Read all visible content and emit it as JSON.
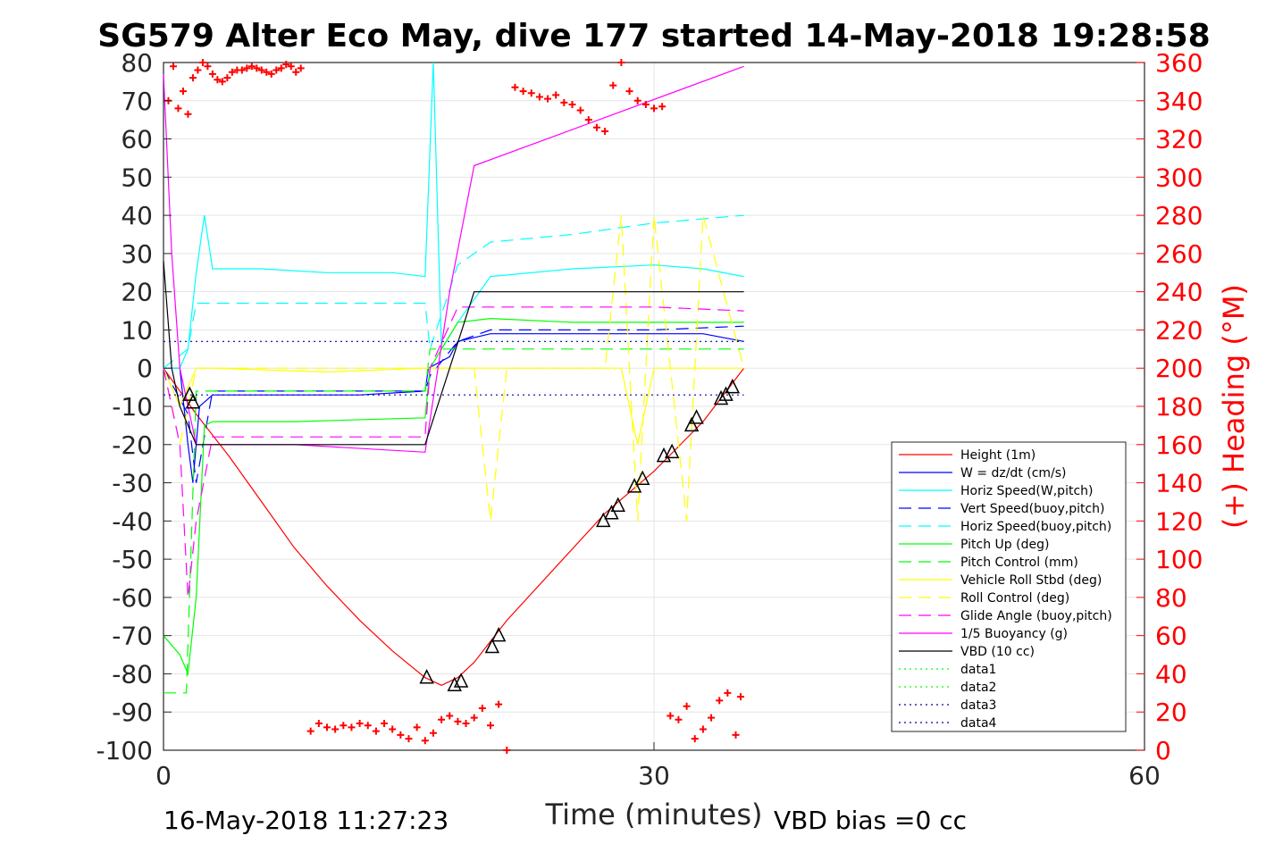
{
  "chart_data": {
    "type": "line",
    "title": "SG579 Alter Eco May, dive 177 started 14-May-2018 19:28:58",
    "xlabel": "Time (minutes)",
    "ylabel": "",
    "ylabel_right": "(+) Heading (°M)",
    "xlim": [
      0,
      60
    ],
    "ylim": [
      -100,
      80
    ],
    "ylim_right": [
      0,
      360
    ],
    "xticks": [
      "0",
      "30",
      "60"
    ],
    "yticks": [
      "80",
      "70",
      "60",
      "50",
      "40",
      "30",
      "20",
      "10",
      "0",
      "-10",
      "-20",
      "-30",
      "-40",
      "-50",
      "-60",
      "-70",
      "-80",
      "-90",
      "-100"
    ],
    "yticks_right": [
      "360",
      "340",
      "320",
      "300",
      "280",
      "260",
      "240",
      "220",
      "200",
      "180",
      "160",
      "140",
      "120",
      "100",
      "80",
      "60",
      "40",
      "20",
      "0"
    ],
    "grid": true,
    "legend_position": "bottom-right",
    "footer_left": "16-May-2018 11:27:23",
    "footer_right": "VBD bias =0 cc",
    "series": [
      {
        "name": "Height (1m)",
        "color": "#ff0000",
        "style": "solid",
        "x": [
          0,
          2,
          4,
          6,
          8,
          10,
          12,
          14,
          16,
          17,
          18,
          19,
          21,
          24,
          27,
          30,
          33,
          35.5
        ],
        "y": [
          0,
          -12,
          -23,
          -35,
          -47,
          -57,
          -66,
          -74,
          -81,
          -83,
          -81,
          -77,
          -66,
          -52,
          -38,
          -27,
          -14,
          0
        ]
      },
      {
        "name": "W = dz/dt (cm/s)",
        "color": "#0000ff",
        "style": "solid",
        "x": [
          0,
          1,
          1.5,
          1.8,
          2.2,
          3,
          8,
          12,
          16,
          16.2,
          17.5,
          18,
          20,
          25,
          30,
          33,
          35.5
        ],
        "y": [
          0,
          0,
          -20,
          -30,
          -10,
          -7,
          -7,
          -7,
          -6,
          0,
          3,
          7,
          9,
          9,
          9,
          9,
          7
        ]
      },
      {
        "name": "Horiz Speed(W,pitch)",
        "color": "#00ffff",
        "style": "solid",
        "x": [
          0,
          1,
          1.5,
          2,
          2.5,
          3,
          6,
          10,
          14,
          16,
          16.5,
          17,
          18,
          20,
          25,
          30,
          33,
          35.5
        ],
        "y": [
          0,
          0,
          5,
          25,
          40,
          26,
          26,
          25,
          25,
          24,
          80,
          5,
          12,
          24,
          26,
          27,
          26,
          24
        ]
      },
      {
        "name": "Vert Speed(buoy,pitch)",
        "color": "#0000ff",
        "style": "dashed",
        "x": [
          0,
          1.5,
          2,
          3,
          8,
          16,
          16.3,
          18,
          20,
          25,
          30,
          35.5
        ],
        "y": [
          0,
          -12,
          -30,
          -6,
          -6,
          -6,
          -2,
          7,
          10,
          10,
          10,
          11
        ]
      },
      {
        "name": "Horiz Speed(buoy,pitch)",
        "color": "#00ffff",
        "style": "dashed",
        "x": [
          0,
          1.5,
          2,
          3,
          8,
          16,
          16.3,
          18,
          20,
          25,
          30,
          35.5
        ],
        "y": [
          0,
          5,
          17,
          17,
          17,
          17,
          5,
          27,
          33,
          35,
          38,
          40
        ]
      },
      {
        "name": "Pitch Up (deg)",
        "color": "#00ff00",
        "style": "solid",
        "x": [
          0,
          1,
          1.5,
          2,
          2.5,
          3,
          8,
          16,
          16.3,
          18,
          20,
          25,
          30,
          35.5
        ],
        "y": [
          -70,
          -75,
          -80,
          -60,
          -15,
          -14,
          -14,
          -13,
          0,
          12,
          13,
          12,
          12,
          12
        ]
      },
      {
        "name": "Pitch Control (mm)",
        "color": "#00ff00",
        "style": "dashed",
        "x": [
          0,
          1,
          1.4,
          2,
          3,
          16,
          16.3,
          18,
          35.5
        ],
        "y": [
          -85,
          -85,
          -85,
          -6,
          -6,
          -6,
          5,
          5,
          5
        ]
      },
      {
        "name": "Vehicle Roll Stbd (deg)",
        "color": "#ffff00",
        "style": "solid",
        "x": [
          0,
          1,
          2,
          3,
          10,
          16,
          17,
          20,
          25,
          28,
          29,
          30,
          33,
          35.5
        ],
        "y": [
          0,
          -10,
          0,
          0,
          -1,
          0,
          0,
          0,
          0,
          0,
          -20,
          0,
          0,
          0
        ]
      },
      {
        "name": "Roll Control (deg)",
        "color": "#ffff00",
        "style": "dashed",
        "x": [
          0,
          1,
          2,
          3,
          16,
          17,
          19,
          20,
          21,
          27,
          28,
          29,
          30,
          32,
          33,
          35.5
        ],
        "y": [
          0,
          -20,
          0,
          0,
          0,
          0,
          0,
          -40,
          0,
          0,
          40,
          -40,
          40,
          -40,
          40,
          0
        ]
      },
      {
        "name": "Glide Angle (buoy,pitch)",
        "color": "#ff00ff",
        "style": "dashed",
        "x": [
          0,
          1,
          1.5,
          2,
          3,
          8,
          16,
          16.3,
          18,
          20,
          25,
          30,
          35.5
        ],
        "y": [
          0,
          -20,
          -60,
          -40,
          -18,
          -18,
          -18,
          0,
          16,
          16,
          16,
          16,
          15
        ]
      },
      {
        "name": "1/5 Buoyancy (g)",
        "color": "#ff00ff",
        "style": "solid",
        "x": [
          0,
          0.5,
          1,
          2,
          2.5,
          8,
          16,
          17.5,
          19,
          35.5
        ],
        "y": [
          77,
          30,
          0,
          -20,
          -20,
          -20,
          -22,
          20,
          53,
          79
        ]
      },
      {
        "name": "VBD (10 cc)",
        "color": "#000000",
        "style": "solid",
        "x": [
          0,
          0.5,
          1,
          2,
          3,
          16,
          17.5,
          19,
          35.5
        ],
        "y": [
          28,
          0,
          -10,
          -20,
          -20,
          -20,
          0,
          20,
          20
        ]
      },
      {
        "name": "data1",
        "color": "#00ff00",
        "style": "dotted",
        "x": [],
        "y": []
      },
      {
        "name": "data2",
        "color": "#00ff00",
        "style": "dotted",
        "x": [],
        "y": []
      },
      {
        "name": "data3",
        "color": "#0000aa",
        "style": "dotted",
        "x": [
          0,
          35.5
        ],
        "y": [
          7,
          7
        ]
      },
      {
        "name": "data4",
        "color": "#0000aa",
        "style": "dotted",
        "x": [
          0,
          35.5
        ],
        "y": [
          -7,
          -7
        ]
      }
    ],
    "heading": {
      "color": "#ff0000",
      "marker": "+",
      "axis": "right",
      "x": [
        0.3,
        0.6,
        0.9,
        1.2,
        1.5,
        1.8,
        2.1,
        2.4,
        2.7,
        3.0,
        3.3,
        3.6,
        3.9,
        4.2,
        4.5,
        4.8,
        5.1,
        5.4,
        5.7,
        6.0,
        6.3,
        6.6,
        6.9,
        7.2,
        7.5,
        7.8,
        8.1,
        8.4,
        9,
        9.5,
        10,
        10.5,
        11,
        11.5,
        12,
        12.5,
        13,
        13.5,
        14,
        14.5,
        15,
        15.5,
        16,
        16.5,
        17,
        17.5,
        18,
        18.5,
        19,
        19.5,
        20,
        20.5,
        21,
        21.5,
        22,
        22.5,
        23,
        23.5,
        24,
        24.5,
        25,
        25.5,
        26,
        26.5,
        27,
        27.5,
        28,
        28.5,
        29,
        29.5,
        30,
        30.5,
        31,
        31.5,
        32,
        32.5,
        33,
        33.5,
        34,
        34.5,
        35,
        35.3
      ],
      "y": [
        340,
        358,
        336,
        345,
        333,
        352,
        356,
        360,
        358,
        354,
        351,
        350,
        352,
        355,
        356,
        356,
        357,
        358,
        357,
        356,
        355,
        354,
        356,
        357,
        359,
        358,
        355,
        357,
        10,
        14,
        12,
        11,
        13,
        12,
        14,
        13,
        10,
        14,
        11,
        8,
        6,
        12,
        5,
        9,
        16,
        18,
        15,
        14,
        17,
        22,
        13,
        24,
        0,
        347,
        345,
        344,
        342,
        341,
        343,
        339,
        338,
        335,
        330,
        326,
        324,
        348,
        360,
        345,
        340,
        338,
        336,
        337,
        18,
        16,
        23,
        6,
        11,
        17,
        26,
        30,
        8,
        28
      ]
    },
    "markers": {
      "color": "#000000",
      "marker": "triangle",
      "x": [
        1.6,
        1.8,
        16.1,
        17.8,
        18.2,
        20.1,
        20.5,
        26.9,
        27.4,
        27.8,
        28.8,
        29.3,
        30.6,
        31.1,
        32.3,
        32.6,
        34.1,
        34.4,
        34.8
      ],
      "y": [
        -7,
        -9,
        -81,
        -83,
        -82,
        -73,
        -70,
        -40,
        -38,
        -36,
        -31,
        -29,
        -23,
        -22,
        -15,
        -13,
        -8,
        -7,
        -5
      ]
    }
  }
}
